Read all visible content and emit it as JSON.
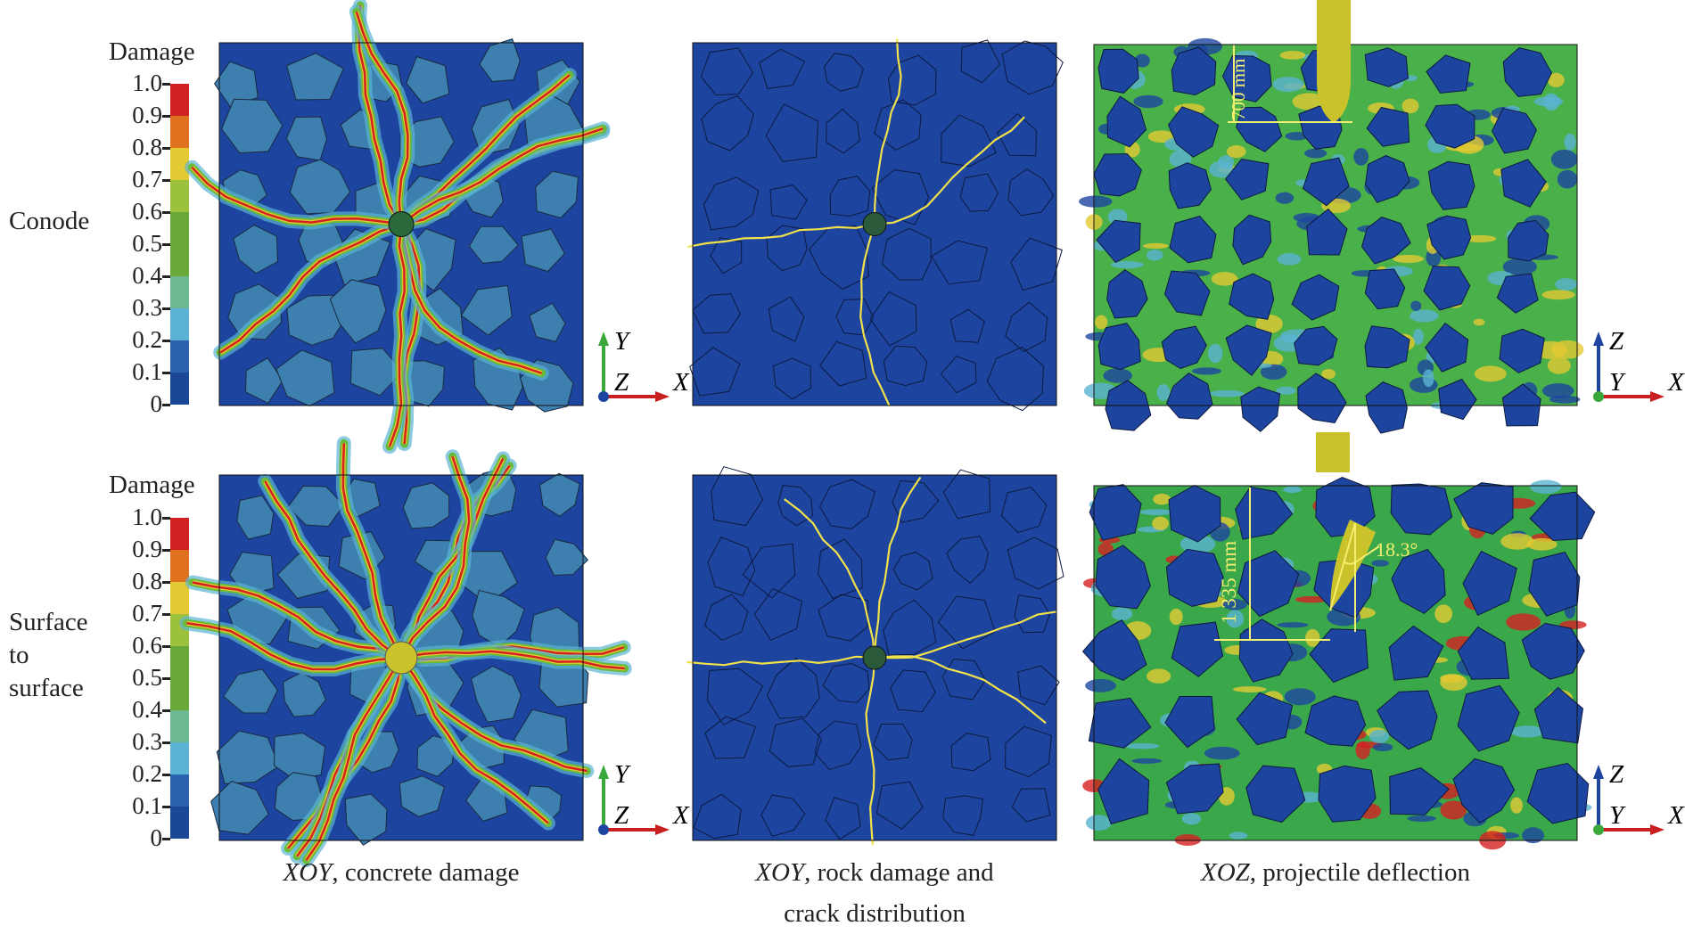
{
  "row_labels": [
    "Conode",
    "Surface\nto\nsurface"
  ],
  "row_labels_lines": [
    [
      "Conode"
    ],
    [
      "Surface",
      "to",
      "surface"
    ]
  ],
  "colorbar": {
    "title": "Damage",
    "ticks": [
      "1.0",
      "0.9",
      "0.8",
      "0.7",
      "0.6",
      "0.5",
      "0.4",
      "0.3",
      "0.2",
      "0.1",
      "0"
    ],
    "colors": [
      "#1a4797",
      "#2b61ae",
      "#5ab3d2",
      "#6db791",
      "#69a93a",
      "#69a93a",
      "#9cc13c",
      "#e3c933",
      "#e0721f",
      "#cf2121"
    ]
  },
  "captions": [
    {
      "italic": "XOY",
      "rest": ", concrete damage",
      "line2": ""
    },
    {
      "italic": "XOY",
      "rest": ", rock damage and",
      "line2": "crack distribution"
    },
    {
      "italic": "XOZ",
      "rest": ", projectile deflection",
      "line2": ""
    }
  ],
  "axes": {
    "xoy": {
      "up": "Y",
      "out": "Z",
      "right": "X"
    },
    "xoz": {
      "up": "Z",
      "out": "Y",
      "right": "X"
    }
  },
  "annotations": {
    "penetration_conode": "700 mm",
    "penetration_surface": "1 335 mm",
    "deflection_angle": "18.3°"
  },
  "colors": {
    "matrix_blue": "#1d45a0",
    "aggregate": "#3d7fae",
    "crack": "#f2e24a",
    "projectile": "#c9c22a"
  }
}
